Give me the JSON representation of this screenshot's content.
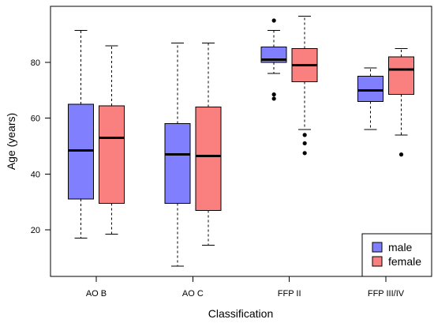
{
  "chart_data": {
    "type": "box",
    "xlabel": "Classification",
    "ylabel": "Age (years)",
    "categories": [
      "AO B",
      "AO C",
      "FFP II",
      "FFP III/IV"
    ],
    "ylim": [
      3.3,
      100.1
    ],
    "yticks": [
      20,
      40,
      60,
      80
    ],
    "grid": false,
    "legend": {
      "position": "bottom-right"
    },
    "series": [
      {
        "name": "male",
        "color": "#8080FF",
        "values": [
          {
            "whisker_low": 17,
            "q1": 31,
            "median": 48.5,
            "q3": 65,
            "whisker_high": 91.5,
            "outliers": []
          },
          {
            "whisker_low": 7,
            "q1": 29.5,
            "median": 47,
            "q3": 58,
            "whisker_high": 87,
            "outliers": []
          },
          {
            "whisker_low": 76,
            "q1": 80,
            "median": 81,
            "q3": 85.5,
            "whisker_high": 91.5,
            "outliers": [
              95,
              68.5,
              67
            ]
          },
          {
            "whisker_low": 56,
            "q1": 66,
            "median": 70,
            "q3": 75,
            "whisker_high": 78,
            "outliers": []
          }
        ]
      },
      {
        "name": "female",
        "color": "#FA8080",
        "values": [
          {
            "whisker_low": 18.5,
            "q1": 29.5,
            "median": 53,
            "q3": 64.5,
            "whisker_high": 86,
            "outliers": []
          },
          {
            "whisker_low": 14.5,
            "q1": 27,
            "median": 46.5,
            "q3": 64,
            "whisker_high": 87,
            "outliers": []
          },
          {
            "whisker_low": 56,
            "q1": 73,
            "median": 79,
            "q3": 85,
            "whisker_high": 96.5,
            "outliers": [
              54,
              51,
              47.5
            ]
          },
          {
            "whisker_low": 54,
            "q1": 68.5,
            "median": 77.5,
            "q3": 82,
            "whisker_high": 85,
            "outliers": [
              47
            ]
          }
        ]
      }
    ]
  }
}
